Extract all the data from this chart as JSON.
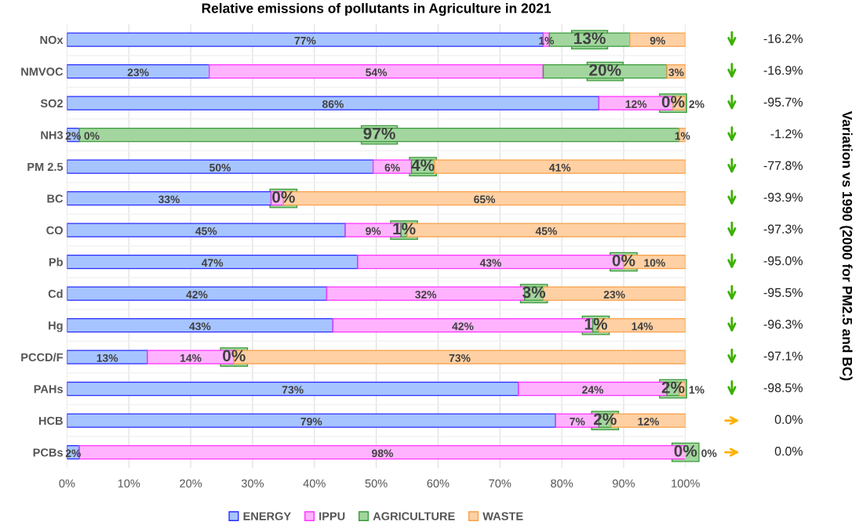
{
  "chart_data": {
    "type": "bar",
    "orientation": "horizontal",
    "stacked": true,
    "title": "Relative emissions of pollutants in Agriculture in 2021",
    "categories": [
      "NOx",
      "NMVOC",
      "SO2",
      "NH3",
      "PM 2.5",
      "BC",
      "CO",
      "Pb",
      "Cd",
      "Hg",
      "PCCD/F",
      "PAHs",
      "HCB",
      "PCBs"
    ],
    "series": [
      {
        "name": "ENERGY",
        "color": "#a6c4ff",
        "values": [
          77,
          23,
          86,
          2,
          49.5,
          33,
          45,
          47,
          42,
          43,
          13,
          73,
          79,
          2
        ],
        "value_labels": [
          "77%",
          "23%",
          "86%",
          "2%",
          "50%",
          "33%",
          "45%",
          "47%",
          "42%",
          "43%",
          "13%",
          "73%",
          "79%",
          "2%"
        ]
      },
      {
        "name": "IPPU",
        "color": "#ffb3ff",
        "values": [
          1,
          54,
          12,
          0,
          6.2,
          2,
          9,
          43,
          32,
          42,
          14,
          24,
          7,
          98
        ],
        "value_labels": [
          "1%",
          "54%",
          "12%",
          "0%",
          "6%",
          null,
          "9%",
          "43%",
          "32%",
          "42%",
          "14%",
          "24%",
          "7%",
          "98%"
        ]
      },
      {
        "name": "AGRICULTURE",
        "color": "#a2d69e",
        "values": [
          13,
          20,
          0,
          97,
          3.7,
          0,
          1,
          0,
          3,
          1,
          0,
          2,
          2,
          0
        ],
        "value_labels": [
          "13%",
          "20%",
          "0%",
          "97%",
          "4%",
          "0%",
          "1%",
          "0%",
          "3%",
          "1%",
          "0%",
          "2%",
          "2%",
          "0%"
        ]
      },
      {
        "name": "WASTE",
        "color": "#ffd0a3",
        "values": [
          9,
          3,
          2,
          1,
          40.6,
          65,
          45,
          10,
          23,
          14,
          73,
          1,
          12,
          0
        ],
        "value_labels": [
          "9%",
          "3%",
          "2%",
          "1%",
          "41%",
          "65%",
          "45%",
          "10%",
          "23%",
          "14%",
          "73%",
          "1%",
          "12%",
          "0%"
        ]
      }
    ],
    "xlim": [
      0,
      100
    ],
    "xticks": [
      {
        "value": 0,
        "label": "0%"
      },
      {
        "value": 10,
        "label": "10%"
      },
      {
        "value": 20,
        "label": "20%"
      },
      {
        "value": 30,
        "label": "30%"
      },
      {
        "value": 40,
        "label": "40%"
      },
      {
        "value": 50,
        "label": "50%"
      },
      {
        "value": 60,
        "label": "60%"
      },
      {
        "value": 70,
        "label": "70%"
      },
      {
        "value": 80,
        "label": "80%"
      },
      {
        "value": 90,
        "label": "90%"
      },
      {
        "value": 100,
        "label": "100%"
      }
    ],
    "annotations": [
      "-16.2%",
      "-16.9%",
      "-95.7%",
      "-1.2%",
      "-77.8%",
      "-93.9%",
      "-97.3%",
      "-95.0%",
      "-95.5%",
      "-96.3%",
      "-97.1%",
      "-98.5%",
      "0.0%",
      "0.0%",
      "Variation vs 1990 (2000 for PM2.5 and BC)"
    ],
    "grid": true,
    "legend": "bottom"
  }
}
